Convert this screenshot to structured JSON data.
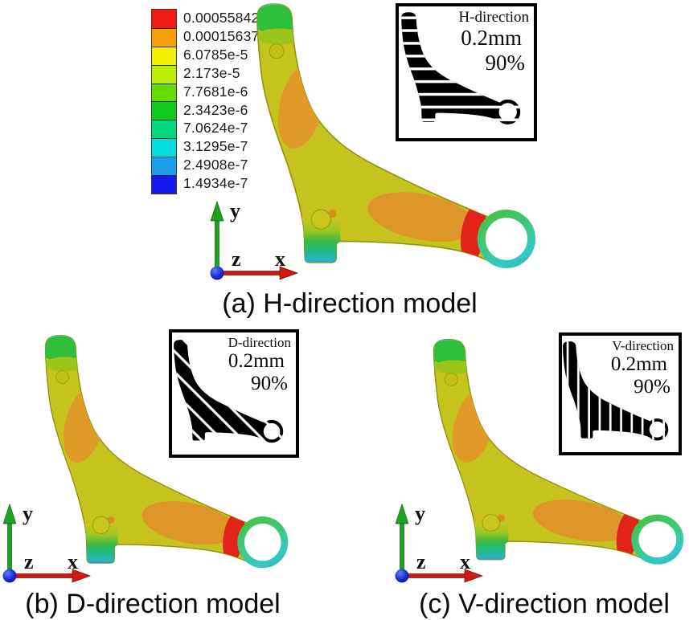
{
  "figure": {
    "background": "#ffffff",
    "legend": {
      "values": [
        "0.00055842",
        "0.00015637",
        "6.0785e-5",
        "2.173e-5",
        "7.7681e-6",
        "2.3423e-6",
        "7.0624e-7",
        "3.1295e-7",
        "2.4908e-7",
        "1.4934e-7"
      ],
      "colors": [
        "#f21911",
        "#f7a008",
        "#f4f000",
        "#b9ee00",
        "#63dd00",
        "#0ecc1e",
        "#00d77e",
        "#00dede",
        "#1b9fe8",
        "#1618ee"
      ]
    },
    "panels": [
      {
        "caption": "(a) H-direction model",
        "inset": {
          "title": "H-direction",
          "offset": "0.2mm",
          "percent": "90%",
          "hatch": "horizontal"
        }
      },
      {
        "caption": "(b) D-direction model",
        "inset": {
          "title": "D-direction",
          "offset": "0.2mm",
          "percent": "90%",
          "hatch": "diagonal"
        }
      },
      {
        "caption": "(c) V-direction model",
        "inset": {
          "title": "V-direction",
          "offset": "0.2mm",
          "percent": "90%",
          "hatch": "vertical"
        }
      }
    ],
    "axes": {
      "x_label": "x",
      "y_label": "y",
      "z_label": "z",
      "x_color": "#cf1a12",
      "y_color": "#1fa01f",
      "z_color": "#1a2bd6"
    },
    "model_palette": {
      "body_yellow": "#c6c21e",
      "patch_orange": "#e09a28",
      "hotspot_red": "#e0241c",
      "cap_green": "#2fbf3b",
      "joint_teal": "#1fba84",
      "ring_cyan": "#35c8c8"
    }
  }
}
